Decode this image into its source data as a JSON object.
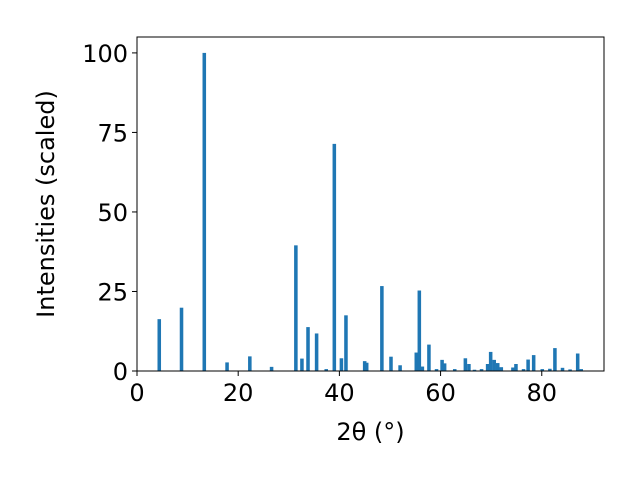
{
  "chart_data": {
    "type": "bar",
    "xlabel": "2θ (°)",
    "ylabel": "Intensities (scaled)",
    "xlim": [
      0,
      92.3
    ],
    "ylim": [
      0,
      105
    ],
    "xticks": [
      0,
      20,
      40,
      60,
      80
    ],
    "yticks": [
      0,
      25,
      50,
      75,
      100
    ],
    "grid": false,
    "bar_color": "#1f77b4",
    "bar_width": 0.7,
    "series": [
      {
        "x": [
          4.4,
          8.8,
          13.3,
          17.8,
          22.3,
          26.6,
          31.4,
          32.6,
          33.8,
          35.5,
          37.4,
          39.0,
          40.4,
          41.3,
          45.0,
          45.4,
          48.4,
          50.2,
          52.0,
          55.2,
          55.8,
          56.4,
          57.7,
          59.2,
          60.3,
          60.8,
          62.8,
          64.9,
          65.6,
          66.7,
          68.1,
          69.3,
          69.9,
          70.6,
          71.3,
          72.0,
          74.3,
          74.9,
          76.4,
          77.3,
          78.4,
          80.1,
          81.6,
          82.6,
          84.1,
          85.6,
          87.1,
          87.8
        ],
        "y": [
          16.3,
          19.9,
          100,
          2.7,
          4.6,
          1.3,
          39.5,
          3.9,
          13.8,
          11.8,
          0.6,
          71.4,
          4.0,
          17.5,
          3.1,
          2.6,
          26.7,
          4.5,
          1.8,
          5.8,
          25.3,
          1.4,
          8.3,
          0.6,
          3.5,
          2.4,
          0.6,
          4.0,
          2.2,
          0.4,
          0.6,
          2.2,
          6.0,
          3.5,
          2.5,
          1.2,
          1.1,
          2.2,
          0.6,
          3.6,
          5.0,
          0.6,
          0.7,
          7.2,
          1.0,
          0.5,
          5.5,
          0.6
        ]
      }
    ]
  }
}
